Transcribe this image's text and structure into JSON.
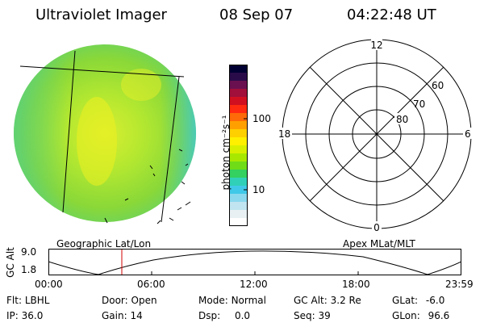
{
  "header": {
    "instrument": "Ultraviolet Imager",
    "date": "08 Sep 07",
    "time": "04:22:48 UT"
  },
  "colorbar": {
    "unit_label": "photon cm⁻²s⁻¹",
    "ticks": [
      "100",
      "10"
    ],
    "colors": [
      "#000033",
      "#2a0b4a",
      "#6a1050",
      "#a0103a",
      "#d01020",
      "#ff2a10",
      "#ff6a08",
      "#ffa000",
      "#ffd000",
      "#fff000",
      "#d8f000",
      "#a8e800",
      "#70dc18",
      "#34d060",
      "#30d0b8",
      "#40c8e8",
      "#8ad8ee",
      "#c0e4f0",
      "#e8f0f4",
      "#ffffff"
    ]
  },
  "polar_plot": {
    "mlt_labels": {
      "top": "12",
      "bottom": "0",
      "left": "18",
      "right": "6"
    },
    "lat_labels": [
      "60",
      "70",
      "80"
    ]
  },
  "subtitles": {
    "left": "Geographic Lat/Lon",
    "right": "Apex MLat/MLT"
  },
  "altitude_plot": {
    "axis_label": "GC Alt",
    "y_ticks": [
      "9.0",
      "1.8"
    ],
    "x_ticks": [
      "00:00",
      "06:00",
      "12:00",
      "18:00",
      "23:59"
    ],
    "marker_color": "#d00000"
  },
  "info_rows": [
    [
      {
        "label": "Flt:",
        "value": "LBHL"
      },
      {
        "label": "Door:",
        "value": "Open"
      },
      {
        "label": "Mode:",
        "value": "Normal"
      },
      {
        "label": "GC Alt:",
        "value": "3.2 Re"
      },
      {
        "label": "GLat:",
        "value": "-6.0"
      }
    ],
    [
      {
        "label": "IP:",
        "value": "36.0"
      },
      {
        "label": "Gain:",
        "value": "14"
      },
      {
        "label": "Dsp:",
        "value": "0.0"
      },
      {
        "label": "Seq:",
        "value": "39"
      },
      {
        "label": "GLon:",
        "value": "96.6"
      }
    ]
  ]
}
